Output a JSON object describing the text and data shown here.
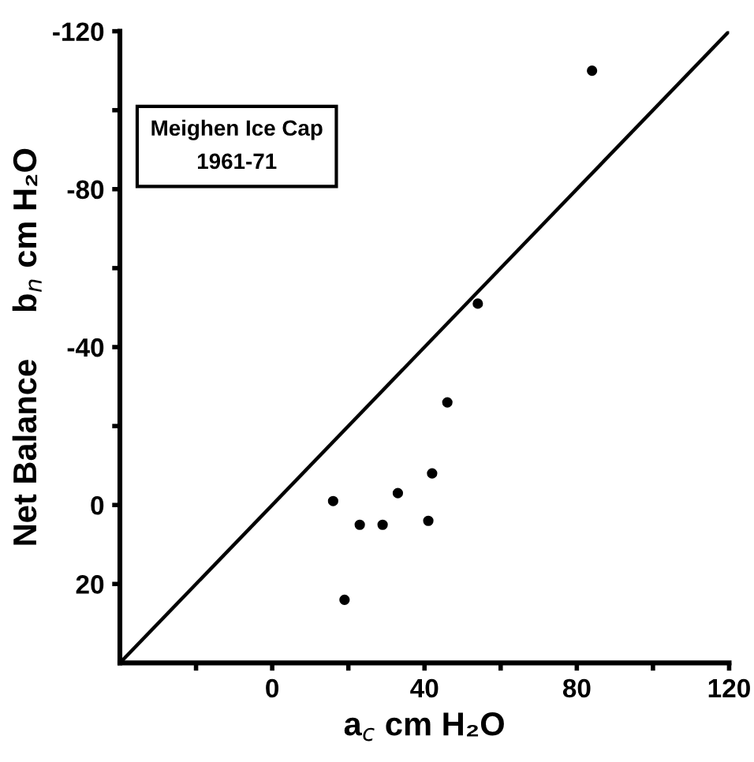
{
  "chart_data": {
    "type": "scatter",
    "xlabel": "a$_{c}$ cm H₂O",
    "ylabel": "Net Balance     b$_{n}$ cm H₂O",
    "annotations": [
      "Meighen Ice Cap\n1961-71"
    ],
    "series": [
      {
        "color": "#000000",
        "marker": "circle",
        "x": [
          16,
          23,
          19,
          46,
          42,
          33,
          29,
          41,
          84,
          54
        ],
        "values": [
          -1,
          5,
          24,
          -26,
          -8,
          -3,
          5,
          4,
          -110,
          -51
        ]
      },
      {
        "type": "line",
        "color": "#000000",
        "marker": "none",
        "line_style": "solid",
        "x": [
          -40,
          120
        ],
        "values": [
          40,
          -120
        ]
      }
    ],
    "xlim": [
      -40,
      120
    ],
    "ylim": [
      40,
      -120
    ],
    "xticks": [
      {
        "value": -20,
        "label": null
      },
      0,
      {
        "value": 20,
        "label": null
      },
      40,
      {
        "value": 60,
        "label": null
      },
      80,
      {
        "value": 100,
        "label": null
      },
      120
    ],
    "yticks": [
      {
        "value": -120,
        "label": "-120"
      },
      {
        "value": -100,
        "label": null
      },
      {
        "value": -80,
        "label": "-80"
      },
      {
        "value": -60,
        "label": null
      },
      {
        "value": -40,
        "label": "-40"
      },
      {
        "value": -20,
        "label": null
      },
      0,
      20
    ],
    "grid": false,
    "legend": false
  }
}
